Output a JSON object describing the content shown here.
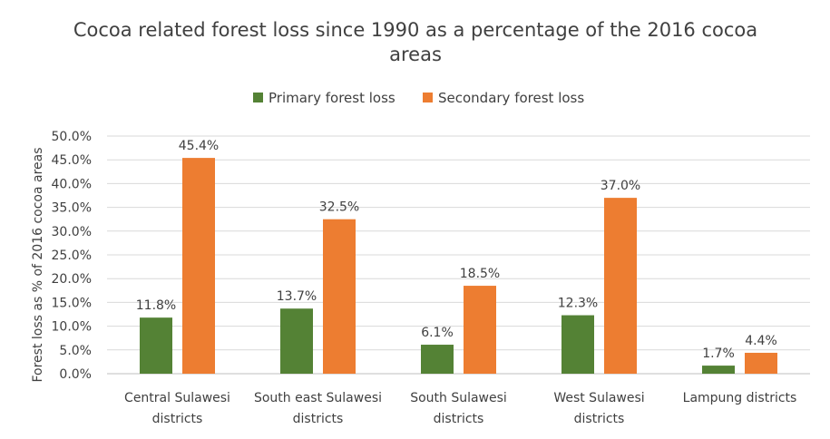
{
  "chart_data": {
    "type": "bar",
    "title_lines": [
      "Cocoa related forest loss since 1990 as a percentage of the 2016 cocoa",
      "areas"
    ],
    "xlabel": "",
    "ylabel": "Forest loss as % of 2016 cocoa areas",
    "ylim": [
      0,
      50
    ],
    "yticks": [
      "0.0%",
      "5.0%",
      "10.0%",
      "15.0%",
      "20.0%",
      "25.0%",
      "30.0%",
      "35.0%",
      "40.0%",
      "45.0%",
      "50.0%"
    ],
    "grid": true,
    "legend_position": "top-center",
    "categories": [
      [
        "Central Sulawesi",
        "districts"
      ],
      [
        "South east Sulawesi",
        "districts"
      ],
      [
        "South Sulawesi",
        "districts"
      ],
      [
        "West Sulawesi",
        "districts"
      ],
      [
        "Lampung districts"
      ]
    ],
    "series": [
      {
        "name": "Primary forest loss",
        "color": "#548235",
        "values": [
          11.8,
          13.7,
          6.1,
          12.3,
          1.7
        ],
        "labels": [
          "11.8%",
          "13.7%",
          "6.1%",
          "12.3%",
          "1.7%"
        ]
      },
      {
        "name": "Secondary forest loss",
        "color": "#ED7D31",
        "values": [
          45.4,
          32.5,
          18.5,
          37.0,
          4.4
        ],
        "labels": [
          "45.4%",
          "32.5%",
          "18.5%",
          "37.0%",
          "4.4%"
        ]
      }
    ]
  }
}
